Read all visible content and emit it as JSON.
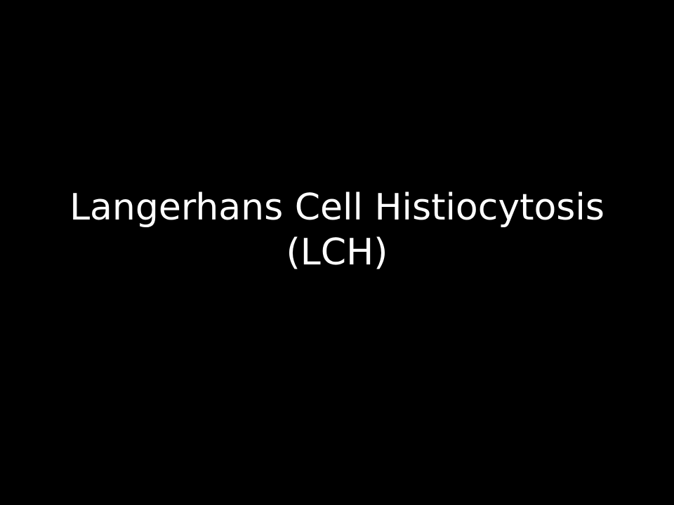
{
  "slide": {
    "title_line_1": "Langerhans Cell Histiocytosis",
    "title_line_2": "(LCH)",
    "background_color": "#000000",
    "text_color": "#ffffff"
  }
}
